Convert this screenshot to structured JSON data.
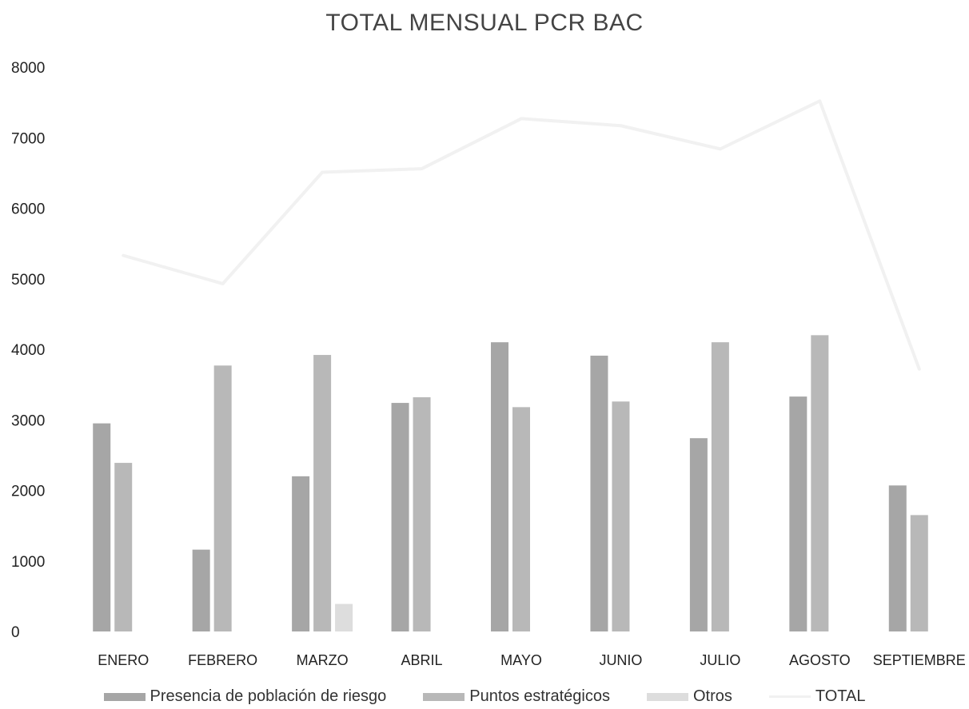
{
  "chart_data": {
    "type": "bar",
    "title": "TOTAL MENSUAL PCR BAC",
    "xlabel": "",
    "ylabel": "",
    "ylim": [
      0,
      8000
    ],
    "yticks": [
      0,
      1000,
      2000,
      3000,
      4000,
      5000,
      6000,
      7000,
      8000
    ],
    "grid": false,
    "legend_position": "bottom",
    "categories": [
      "ENERO",
      "FEBRERO",
      "MARZO",
      "ABRIL",
      "MAYO",
      "JUNIO",
      "JULIO",
      "AGOSTO",
      "SEPTIEMBRE"
    ],
    "series": [
      {
        "name": "Presencia de población de riesgo",
        "type": "bar",
        "color": "#a6a6a6",
        "values": [
          2950,
          1160,
          2200,
          3240,
          4100,
          3910,
          2740,
          3330,
          2070
        ]
      },
      {
        "name": "Puntos estratégicos",
        "type": "bar",
        "color": "#b8b8b8",
        "values": [
          2390,
          3770,
          3920,
          3320,
          3180,
          3260,
          4100,
          4200,
          1650
        ]
      },
      {
        "name": "Otros",
        "type": "bar",
        "color": "#dddddd",
        "values": [
          0,
          0,
          390,
          0,
          0,
          0,
          0,
          0,
          0
        ]
      },
      {
        "name": "TOTAL",
        "type": "line",
        "color": "#f1f1f1",
        "values": [
          5330,
          4930,
          6510,
          6560,
          7270,
          7170,
          6840,
          7520,
          3720
        ]
      }
    ]
  }
}
